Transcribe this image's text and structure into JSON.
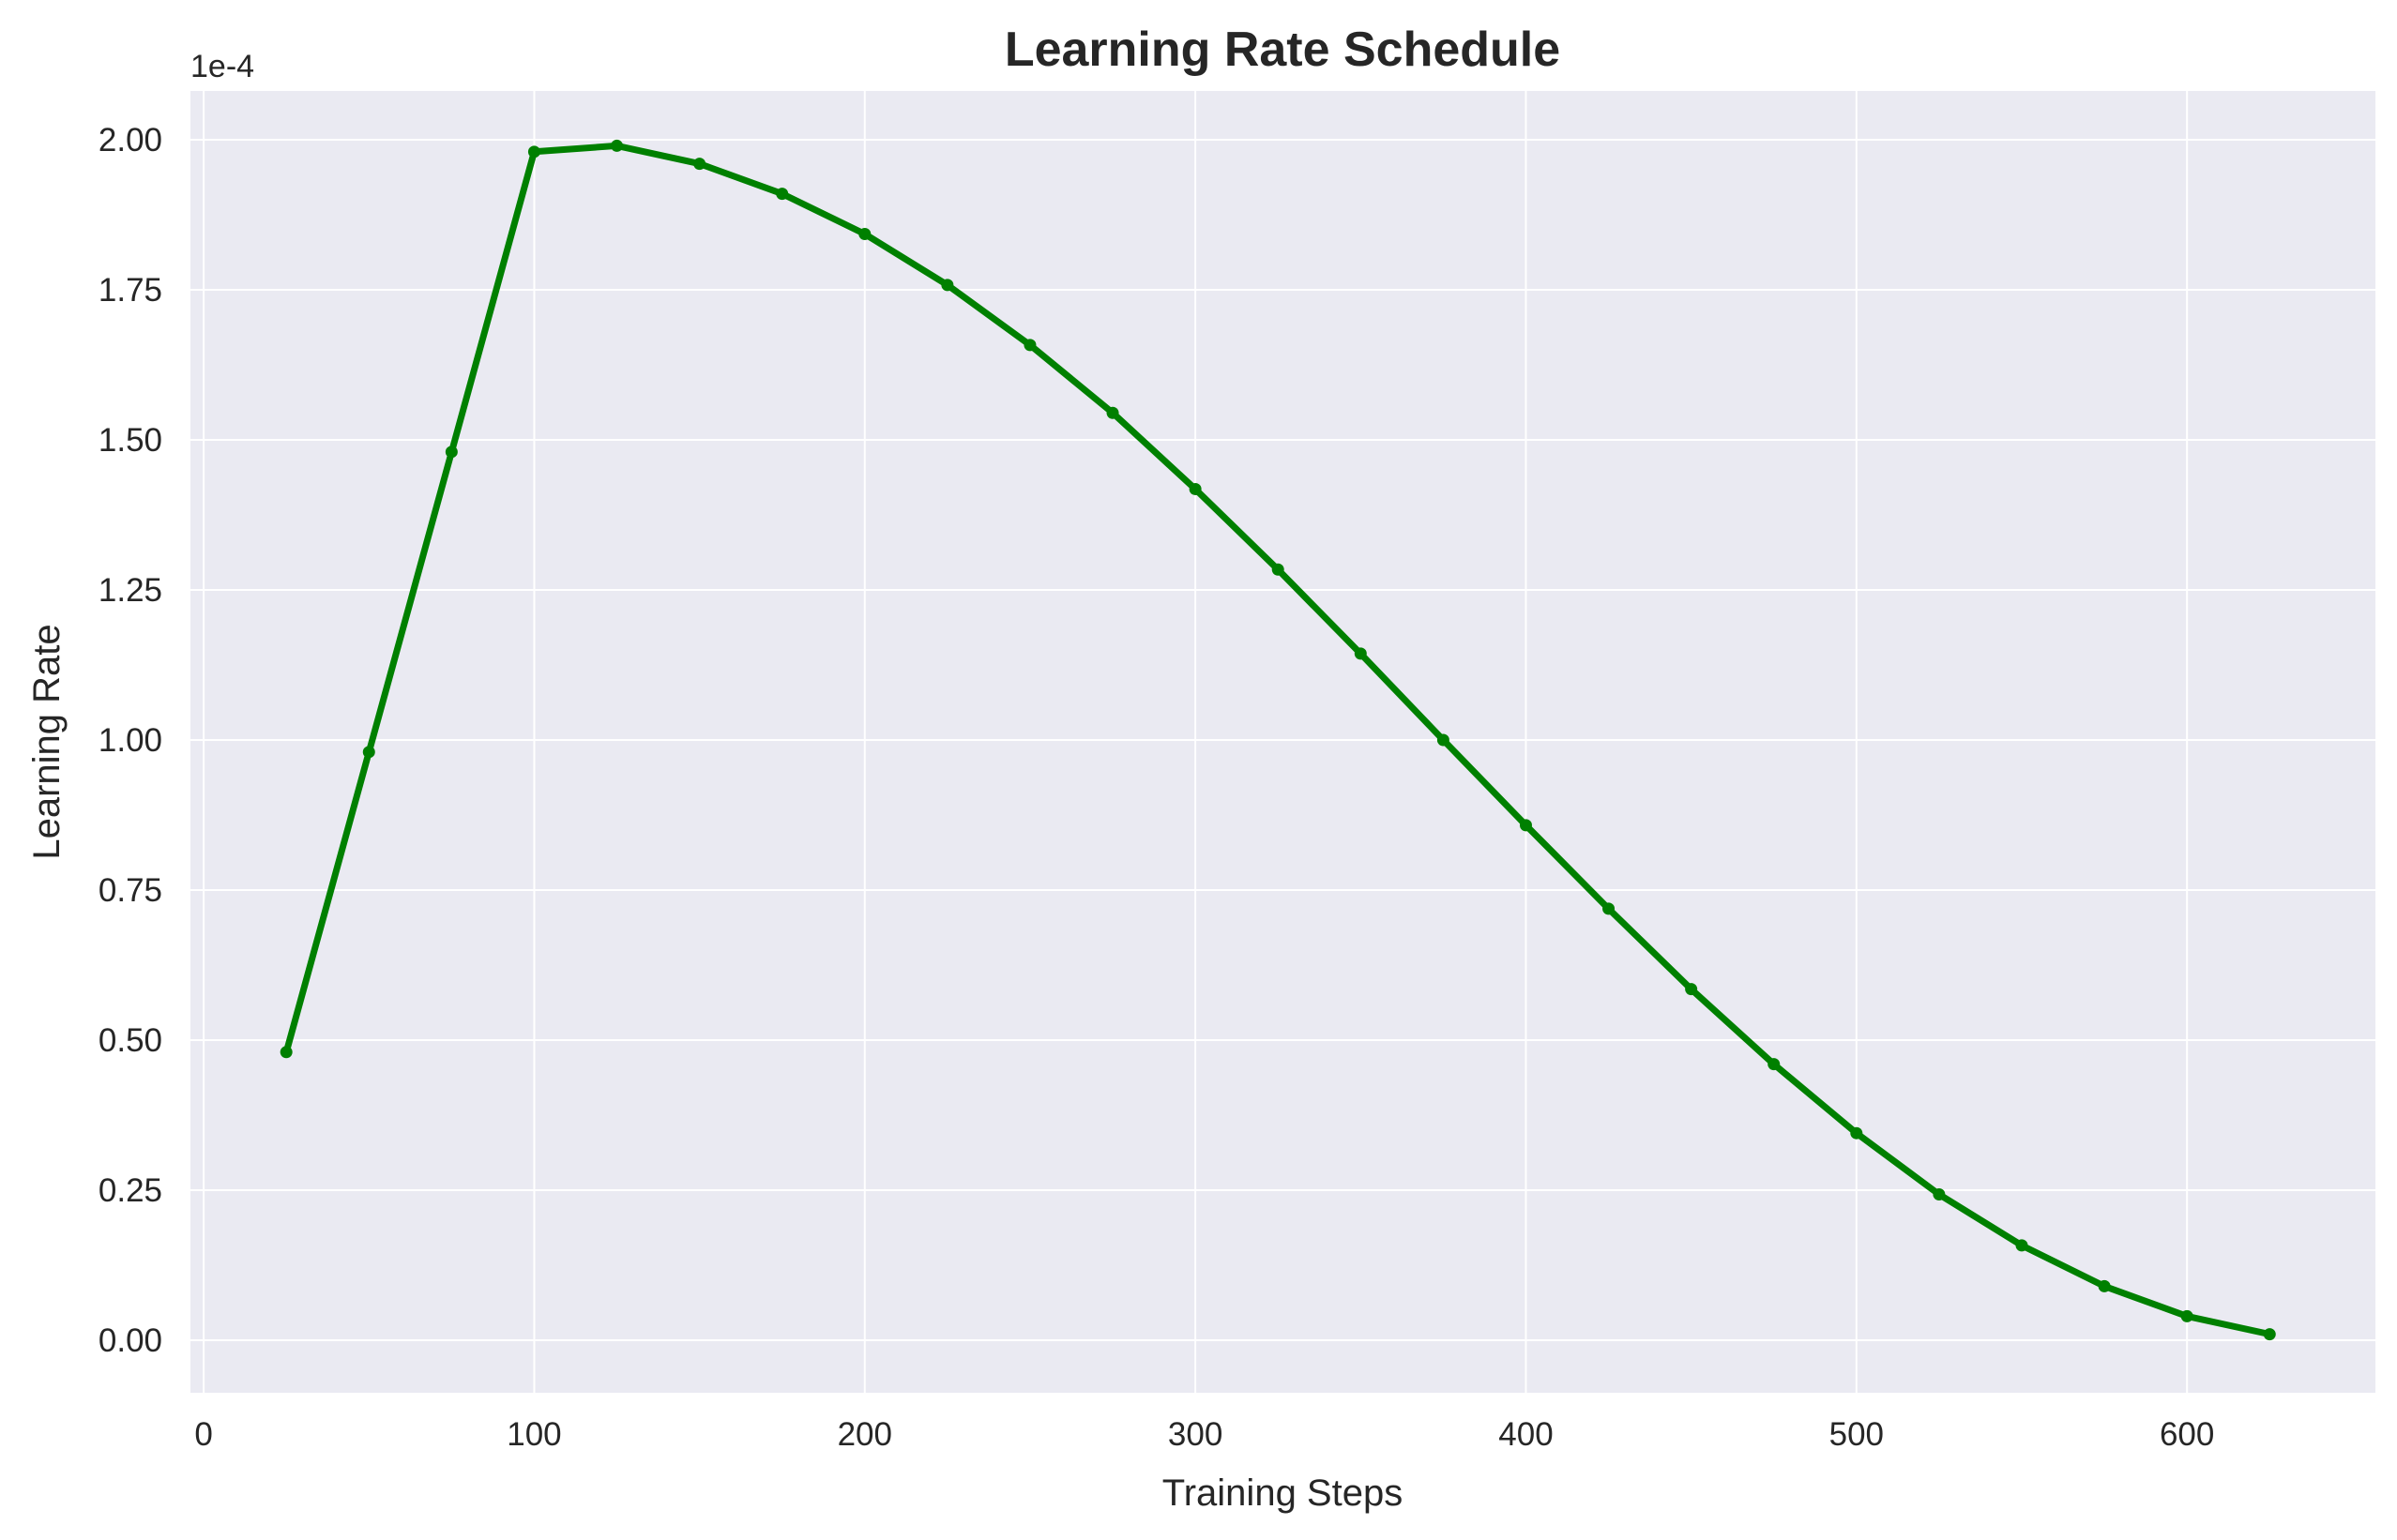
{
  "chart_data": {
    "type": "line",
    "title": "Learning Rate Schedule",
    "xlabel": "Training Steps",
    "ylabel": "Learning Rate",
    "y_offset_label": "1e-4",
    "xlim": [
      -4,
      657
    ],
    "ylim": [
      -8.75e-06,
      0.00020813
    ],
    "x_ticks": [
      0,
      100,
      200,
      300,
      400,
      500,
      600
    ],
    "y_ticks": [
      0,
      2.5e-05,
      5e-05,
      7.5e-05,
      0.0001,
      0.000125,
      0.00015,
      0.000175,
      0.0002
    ],
    "x_tick_labels": [
      "0",
      "100",
      "200",
      "300",
      "400",
      "500",
      "600"
    ],
    "y_tick_labels": [
      "0.00",
      "0.25",
      "0.50",
      "0.75",
      "1.00",
      "1.25",
      "1.50",
      "1.75",
      "2.00"
    ],
    "grid": true,
    "legend": "none",
    "colors": {
      "line": "#008000",
      "plot_background": "#eaeaf2",
      "grid": "#ffffff",
      "text": "#262626"
    },
    "series": [
      {
        "x": [
          25,
          50,
          75,
          100,
          125,
          150,
          175,
          200,
          225,
          250,
          275,
          300,
          325,
          350,
          375,
          400,
          425,
          450,
          475,
          500,
          525,
          550,
          575,
          600,
          625
        ],
        "y": [
          4.8e-05,
          9.8e-05,
          0.000148,
          0.000198,
          0.000199,
          0.000196,
          0.000191,
          0.0001843,
          0.0001758,
          0.0001658,
          0.0001545,
          0.0001418,
          0.0001284,
          0.0001144,
          0.0001,
          8.58e-05,
          7.19e-05,
          5.85e-05,
          4.6e-05,
          3.45e-05,
          2.43e-05,
          1.58e-05,
          9e-06,
          4e-06,
          1e-06
        ]
      }
    ]
  }
}
